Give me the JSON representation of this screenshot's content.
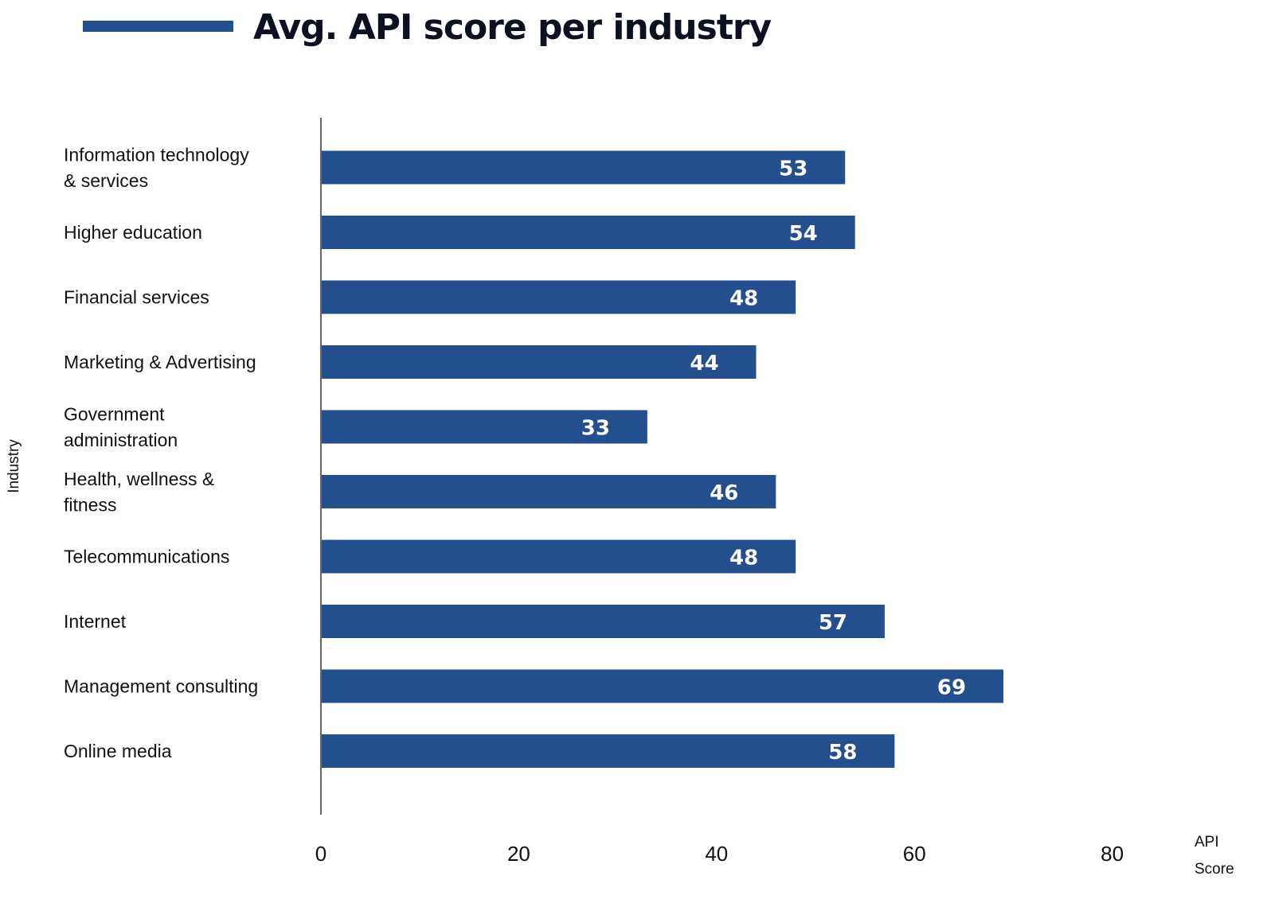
{
  "chart_data": {
    "type": "bar",
    "orientation": "horizontal",
    "title": "Avg. API score per industry",
    "xlabel": "API Score",
    "ylabel": "Industry",
    "xlim": [
      0,
      80
    ],
    "xticks": [
      0,
      20,
      40,
      60,
      80
    ],
    "grid": false,
    "legend": "none",
    "categories": [
      "Information technology & services",
      "Higher education",
      "Financial services",
      "Marketing & Advertising",
      "Government administration",
      "Health, wellness & fitness",
      "Telecommunications",
      "Internet",
      "Management consulting",
      "Online media"
    ],
    "category_lines": [
      [
        "Information technology",
        "& services"
      ],
      [
        "Higher education"
      ],
      [
        "Financial services"
      ],
      [
        "Marketing & Advertising"
      ],
      [
        "Government",
        "administration"
      ],
      [
        "Health, wellness &",
        "fitness"
      ],
      [
        "Telecommunications"
      ],
      [
        "Internet"
      ],
      [
        "Management consulting"
      ],
      [
        "Online media"
      ]
    ],
    "values": [
      53,
      54,
      48,
      44,
      33,
      46,
      48,
      57,
      69,
      58
    ],
    "xlabel_lines": [
      "API",
      "Score"
    ],
    "colors": {
      "bar": "#234f8f",
      "title_accent": "#234f8f",
      "axis": "#666666"
    }
  }
}
